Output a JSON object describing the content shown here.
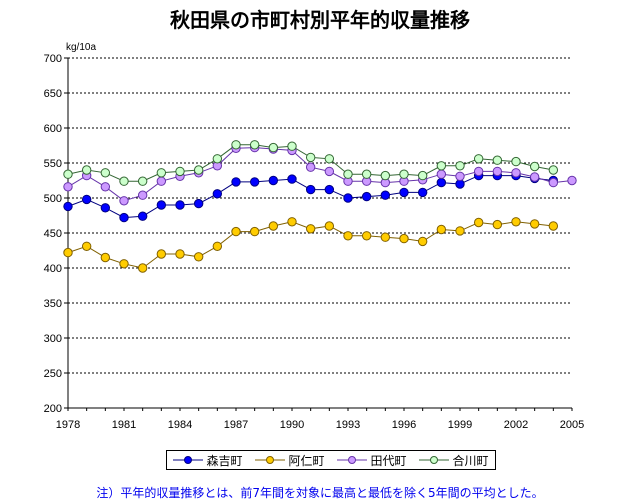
{
  "chart_data": {
    "type": "line",
    "title": "秋田県の市町村別平年的収量推移",
    "ylabel": "kg/10a",
    "xlabel": "",
    "ylim": [
      200,
      700
    ],
    "yticks": [
      200,
      250,
      300,
      350,
      400,
      450,
      500,
      550,
      600,
      650,
      700
    ],
    "xlim": [
      1978,
      2005
    ],
    "xticks": [
      1978,
      1981,
      1984,
      1987,
      1990,
      1993,
      1996,
      1999,
      2002,
      2005
    ],
    "grid": "horizontal dashed",
    "legend_position": "bottom",
    "x": [
      1978,
      1979,
      1980,
      1981,
      1982,
      1983,
      1984,
      1985,
      1986,
      1987,
      1988,
      1989,
      1990,
      1991,
      1992,
      1993,
      1994,
      1995,
      1996,
      1997,
      1998,
      1999,
      2000,
      2001,
      2002,
      2003,
      2004,
      2005
    ],
    "series": [
      {
        "name": "森吉町",
        "color": "#0000ff",
        "border": "#000080",
        "values": [
          488,
          498,
          486,
          472,
          474,
          490,
          490,
          492,
          506,
          523,
          523,
          525,
          527,
          512,
          512,
          500,
          502,
          504,
          508,
          508,
          522,
          520,
          532,
          532,
          532,
          528,
          525,
          null
        ]
      },
      {
        "name": "阿仁町",
        "color": "#ffcc00",
        "border": "#806000",
        "values": [
          422,
          431,
          415,
          406,
          400,
          420,
          420,
          416,
          431,
          452,
          452,
          460,
          466,
          456,
          460,
          446,
          446,
          444,
          442,
          438,
          455,
          453,
          465,
          462,
          466,
          463,
          460,
          null
        ]
      },
      {
        "name": "田代町",
        "color": "#cc99ff",
        "border": "#6633aa",
        "values": [
          516,
          532,
          516,
          496,
          504,
          524,
          531,
          536,
          546,
          571,
          572,
          570,
          568,
          544,
          538,
          524,
          524,
          522,
          524,
          526,
          534,
          531,
          538,
          538,
          536,
          530,
          522,
          525
        ]
      },
      {
        "name": "合川町",
        "color": "#ccffcc",
        "border": "#336633",
        "values": [
          534,
          540,
          536,
          524,
          524,
          536,
          538,
          540,
          556,
          576,
          576,
          572,
          574,
          558,
          556,
          534,
          534,
          532,
          534,
          532,
          546,
          546,
          556,
          554,
          552,
          545,
          540,
          null
        ]
      }
    ]
  },
  "footnote": "注）平年的収量推移とは、前7年間を対象に最高と最低を除く5年間の平均とした。"
}
